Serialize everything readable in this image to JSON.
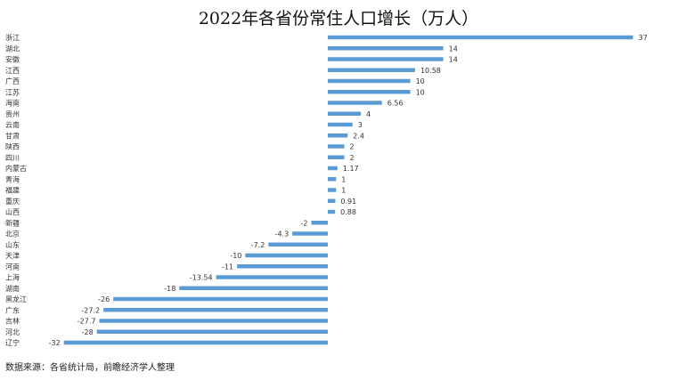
{
  "chart_data": {
    "type": "bar",
    "orientation": "horizontal",
    "title": "2022年各省份常住人口增长（万人）",
    "categories": [
      "浙江",
      "湖北",
      "安徽",
      "江西",
      "广西",
      "江苏",
      "海南",
      "贵州",
      "云南",
      "甘肃",
      "陕西",
      "四川",
      "内蒙古",
      "青海",
      "福建",
      "重庆",
      "山西",
      "新疆",
      "北京",
      "山东",
      "天津",
      "河南",
      "上海",
      "湖南",
      "黑龙江",
      "广东",
      "吉林",
      "河北",
      "辽宁"
    ],
    "values": [
      37,
      14,
      14,
      10.58,
      10,
      10,
      6.56,
      4,
      3,
      2.4,
      2,
      2,
      1.17,
      1,
      1,
      0.91,
      0.88,
      -2,
      -4.3,
      -7.2,
      -10,
      -11,
      -13.54,
      -18,
      -26,
      -27.2,
      -27.7,
      -28,
      -32
    ],
    "labels": [
      "37",
      "14",
      "14",
      "10.58",
      "10",
      "10",
      "6.56",
      "4",
      "3",
      "2.4",
      "2",
      "2",
      "1.17",
      "1",
      "1",
      "0.91",
      "0.88",
      "-2",
      "-4.3",
      "-7.2",
      "-10",
      "-11",
      "-13.54",
      "-18",
      "-26",
      "-27.2",
      "-27.7",
      "-28",
      "-32"
    ],
    "bar_color": "#5B9BD5",
    "xlim": [
      -34,
      37
    ],
    "grid": false,
    "legend": "none"
  },
  "footer": "数据来源：各省统计局，前瞻经济学人整理"
}
